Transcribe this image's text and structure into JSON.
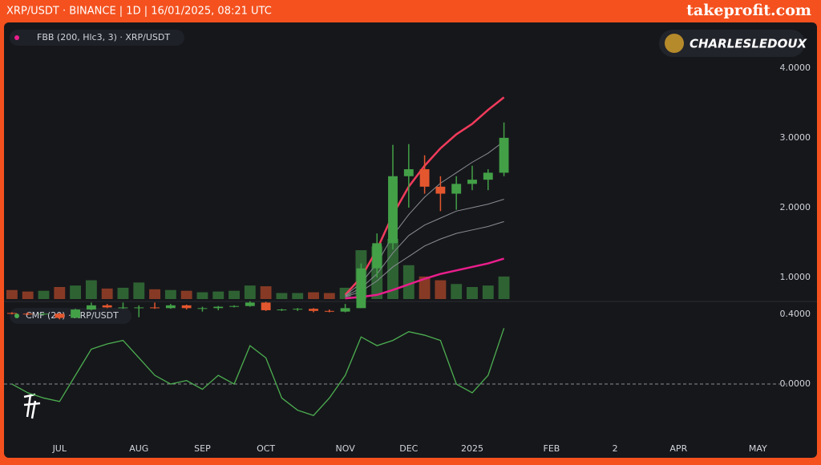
{
  "header": {
    "title": "XRP/USDT · BINANCE | 1D | 16/01/2025, 08:21 UTC",
    "brand": "takeprofit.com"
  },
  "watermark": "CHARLESLEDOUX",
  "chart_data": [
    {
      "type": "candlestick",
      "legend": "FBB (200, Hlc3, 3) · XRP/USDT",
      "categories": [
        null,
        null,
        null,
        "JUL",
        null,
        null,
        null,
        null,
        "AUG",
        null,
        null,
        null,
        "SEP",
        null,
        null,
        null,
        "OCT",
        null,
        null,
        null,
        null,
        "NOV",
        null,
        null,
        null,
        "DEC",
        null,
        null,
        null,
        "2025",
        null,
        null,
        null,
        null,
        "FEB",
        null,
        null,
        null,
        "2",
        null,
        null,
        null,
        "APR",
        null,
        null,
        null,
        null,
        "MAY",
        null
      ],
      "open": [
        0.49,
        0.48,
        0.47,
        0.48,
        0.42,
        0.54,
        0.6,
        0.57,
        0.57,
        0.57,
        0.56,
        0.6,
        0.56,
        0.56,
        0.58,
        0.59,
        0.64,
        0.53,
        0.54,
        0.55,
        0.52,
        0.51,
        0.56,
        1.13,
        1.49,
        2.45,
        2.55,
        2.3,
        2.2,
        2.34,
        2.4,
        2.5,
        null,
        null,
        null,
        null,
        null,
        null,
        null,
        null,
        null,
        null,
        null,
        null,
        null,
        null,
        null,
        null,
        null
      ],
      "high": [
        0.5,
        0.5,
        0.49,
        0.49,
        0.55,
        0.64,
        0.62,
        0.64,
        0.6,
        0.64,
        0.62,
        0.61,
        0.58,
        0.59,
        0.6,
        0.66,
        0.65,
        0.55,
        0.56,
        0.56,
        0.54,
        0.62,
        1.2,
        1.63,
        2.9,
        2.91,
        2.75,
        2.45,
        2.45,
        2.6,
        2.55,
        3.22,
        null,
        null,
        null,
        null,
        null,
        null,
        null,
        null,
        null,
        null,
        null,
        null,
        null,
        null,
        null,
        null,
        null
      ],
      "low": [
        0.47,
        0.46,
        0.46,
        0.4,
        0.42,
        0.53,
        0.56,
        0.55,
        0.43,
        0.55,
        0.55,
        0.54,
        0.51,
        0.53,
        0.57,
        0.58,
        0.52,
        0.52,
        0.52,
        0.5,
        0.5,
        0.5,
        0.56,
        1.0,
        1.4,
        2.0,
        2.2,
        1.95,
        1.97,
        2.25,
        2.25,
        2.45,
        null,
        null,
        null,
        null,
        null,
        null,
        null,
        null,
        null,
        null,
        null,
        null,
        null,
        null,
        null,
        null,
        null
      ],
      "close": [
        0.48,
        0.47,
        0.48,
        0.42,
        0.54,
        0.6,
        0.57,
        0.57,
        0.57,
        0.56,
        0.6,
        0.56,
        0.56,
        0.58,
        0.59,
        0.64,
        0.53,
        0.54,
        0.55,
        0.52,
        0.51,
        0.56,
        1.13,
        1.49,
        2.45,
        2.55,
        2.3,
        2.2,
        2.34,
        2.4,
        2.5,
        3.0,
        null,
        null,
        null,
        null,
        null,
        null,
        null,
        null,
        null,
        null,
        null,
        null,
        null,
        null,
        null,
        null,
        null
      ],
      "volume": [
        1.2,
        1.0,
        1.1,
        1.6,
        1.8,
        2.5,
        1.4,
        1.5,
        2.2,
        1.3,
        1.2,
        1.1,
        0.9,
        1.0,
        1.1,
        1.8,
        1.7,
        0.8,
        0.8,
        0.9,
        0.8,
        1.5,
        6.5,
        7.0,
        8.0,
        4.5,
        3.0,
        2.5,
        2.0,
        1.6,
        1.8,
        3.0,
        null,
        null,
        null,
        null,
        null,
        null,
        null,
        null,
        null,
        null,
        null,
        null,
        null,
        null,
        null,
        null,
        null
      ],
      "up_color": "#43a047",
      "down_color": "#e4572e",
      "bands": [
        {
          "color": "#f23b5c",
          "values": [
            null,
            null,
            null,
            null,
            null,
            null,
            null,
            null,
            null,
            null,
            null,
            null,
            null,
            null,
            null,
            null,
            null,
            null,
            null,
            null,
            null,
            0.75,
            1.0,
            1.4,
            1.9,
            2.3,
            2.6,
            2.85,
            3.05,
            3.2,
            3.4,
            3.58,
            null,
            null,
            null,
            null,
            null,
            null,
            null,
            null,
            null,
            null,
            null,
            null,
            null,
            null,
            null,
            null,
            null
          ]
        },
        {
          "color": "#8a8d94",
          "values": [
            null,
            null,
            null,
            null,
            null,
            null,
            null,
            null,
            null,
            null,
            null,
            null,
            null,
            null,
            null,
            null,
            null,
            null,
            null,
            null,
            null,
            0.74,
            0.92,
            1.2,
            1.6,
            1.9,
            2.15,
            2.35,
            2.5,
            2.65,
            2.78,
            2.95,
            null,
            null,
            null,
            null,
            null,
            null,
            null,
            null,
            null,
            null,
            null,
            null,
            null,
            null,
            null,
            null,
            null
          ]
        },
        {
          "color": "#8a8d94",
          "values": [
            null,
            null,
            null,
            null,
            null,
            null,
            null,
            null,
            null,
            null,
            null,
            null,
            null,
            null,
            null,
            null,
            null,
            null,
            null,
            null,
            null,
            0.73,
            0.85,
            1.05,
            1.35,
            1.6,
            1.75,
            1.85,
            1.95,
            2.0,
            2.05,
            2.12,
            null,
            null,
            null,
            null,
            null,
            null,
            null,
            null,
            null,
            null,
            null,
            null,
            null,
            null,
            null,
            null,
            null
          ]
        },
        {
          "color": "#8a8d94",
          "values": [
            null,
            null,
            null,
            null,
            null,
            null,
            null,
            null,
            null,
            null,
            null,
            null,
            null,
            null,
            null,
            null,
            null,
            null,
            null,
            null,
            null,
            0.72,
            0.8,
            0.95,
            1.15,
            1.3,
            1.45,
            1.55,
            1.63,
            1.68,
            1.73,
            1.8,
            null,
            null,
            null,
            null,
            null,
            null,
            null,
            null,
            null,
            null,
            null,
            null,
            null,
            null,
            null,
            null,
            null
          ]
        },
        {
          "color": "#e91e8c",
          "values": [
            null,
            null,
            null,
            null,
            null,
            null,
            null,
            null,
            null,
            null,
            null,
            null,
            null,
            null,
            null,
            null,
            null,
            null,
            null,
            null,
            null,
            0.7,
            0.72,
            0.75,
            0.82,
            0.9,
            0.98,
            1.05,
            1.1,
            1.15,
            1.2,
            1.27,
            null,
            null,
            null,
            null,
            null,
            null,
            null,
            null,
            null,
            null,
            null,
            null,
            null,
            null,
            null,
            null,
            null
          ]
        }
      ],
      "ylim": [
        0.69,
        4.63
      ],
      "yticks": [
        {
          "value": 1,
          "label": "1.0000"
        },
        {
          "value": 2,
          "label": "2.0000"
        },
        {
          "value": 3,
          "label": "3.0000"
        },
        {
          "value": 4,
          "label": "4.0000"
        }
      ]
    },
    {
      "type": "line",
      "legend": "CMF (20) · XRP/USDT",
      "color": "#4caf50",
      "values": [
        0.0,
        -0.05,
        -0.08,
        -0.1,
        0.05,
        0.2,
        0.23,
        0.25,
        0.15,
        0.05,
        0.0,
        0.02,
        -0.03,
        0.05,
        0.0,
        0.22,
        0.15,
        -0.08,
        -0.15,
        -0.18,
        -0.08,
        0.05,
        0.27,
        0.22,
        0.25,
        0.3,
        0.28,
        0.25,
        0.0,
        -0.05,
        0.05,
        0.32,
        null,
        null,
        null,
        null,
        null,
        null,
        null,
        null,
        null,
        null,
        null,
        null,
        null,
        null,
        null,
        null,
        null
      ],
      "ylim": [
        -0.303,
        0.464
      ],
      "yticks": [
        {
          "value": 0,
          "label": "0.0000"
        },
        {
          "value": 0.4,
          "label": "0.4000"
        }
      ]
    }
  ]
}
